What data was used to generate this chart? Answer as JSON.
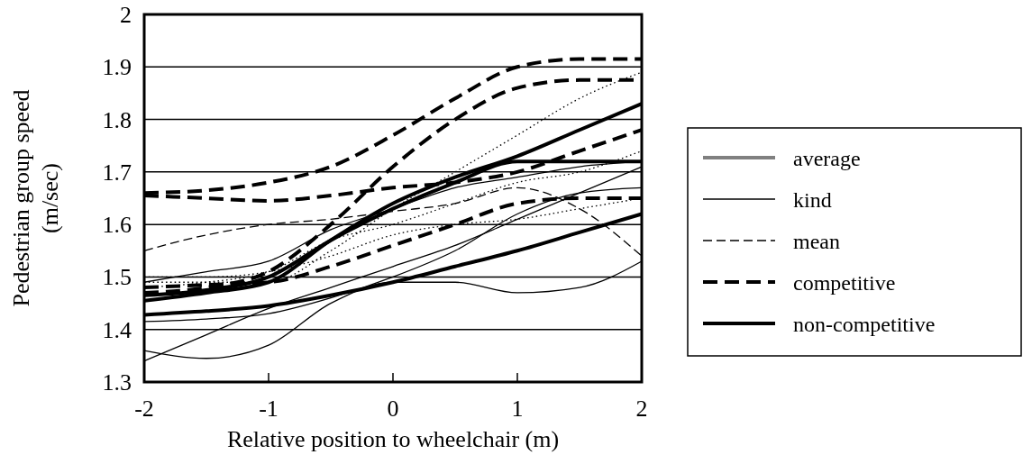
{
  "chart_data": {
    "type": "line",
    "xlabel": "Relative position to wheelchair (m)",
    "ylabel": "Pedestrian group speed (m/sec)",
    "x": [
      -2,
      -1.5,
      -1,
      -0.5,
      0,
      0.5,
      1,
      1.5,
      2
    ],
    "xlim": [
      -2,
      2
    ],
    "xticks": [
      -2,
      -1,
      0,
      1,
      2
    ],
    "ylim": [
      1.3,
      2
    ],
    "yticks": [
      1.3,
      1.4,
      1.5,
      1.6,
      1.7,
      1.8,
      1.9,
      2
    ],
    "grid": "y",
    "legend": "right",
    "marker": "none",
    "series": [
      {
        "name": "average",
        "color": "#808080",
        "line_style": "solid",
        "values": [
          null,
          null,
          null,
          null,
          null,
          null,
          null,
          null,
          null
        ]
      },
      {
        "name": "kind",
        "color": "#000000",
        "line_style": "solid",
        "values": [
          1.49,
          1.51,
          1.53,
          1.59,
          1.63,
          1.67,
          1.69,
          1.71,
          1.72
        ]
      },
      {
        "color": "#000000",
        "line_style": "solid",
        "values": [
          1.36,
          1.345,
          1.37,
          1.45,
          1.49,
          1.49,
          1.47,
          1.48,
          1.53
        ]
      },
      {
        "color": "#000000",
        "line_style": "solid",
        "values": [
          1.34,
          1.39,
          1.44,
          1.48,
          1.52,
          1.56,
          1.61,
          1.66,
          1.71
        ]
      },
      {
        "color": "#000000",
        "line_style": "solid",
        "values": [
          1.415,
          1.42,
          1.43,
          1.46,
          1.5,
          1.55,
          1.62,
          1.66,
          1.67
        ]
      },
      {
        "name": "mean",
        "color": "#000000",
        "line_style": "dashed",
        "values": [
          1.55,
          1.58,
          1.6,
          1.61,
          1.625,
          1.64,
          1.67,
          1.63,
          1.54
        ]
      },
      {
        "color": "#000000",
        "line_style": "dotted",
        "values": [
          1.49,
          1.49,
          1.49,
          1.55,
          1.63,
          1.7,
          1.77,
          1.84,
          1.89
        ]
      },
      {
        "color": "#000000",
        "line_style": "dotted",
        "values": [
          1.48,
          1.49,
          1.51,
          1.57,
          1.6,
          1.64,
          1.68,
          1.7,
          1.74
        ]
      },
      {
        "color": "#000000",
        "line_style": "dotted",
        "values": [
          1.5,
          1.5,
          1.51,
          1.54,
          1.58,
          1.6,
          1.61,
          1.63,
          1.65
        ]
      },
      {
        "name": "competitive",
        "color": "#000000",
        "line_style": "dashed",
        "values": [
          1.66,
          1.665,
          1.68,
          1.71,
          1.77,
          1.84,
          1.9,
          1.915,
          1.915
        ]
      },
      {
        "color": "#000000",
        "line_style": "dashed",
        "values": [
          1.655,
          1.65,
          1.645,
          1.655,
          1.67,
          1.68,
          1.7,
          1.74,
          1.78
        ]
      },
      {
        "color": "#000000",
        "line_style": "dashed",
        "values": [
          1.47,
          1.48,
          1.51,
          1.6,
          1.71,
          1.8,
          1.86,
          1.875,
          1.875
        ]
      },
      {
        "color": "#000000",
        "line_style": "dashed",
        "values": [
          1.48,
          1.485,
          1.49,
          1.52,
          1.56,
          1.6,
          1.64,
          1.65,
          1.65
        ]
      },
      {
        "name": "non-competitive",
        "color": "#000000",
        "line_style": "solid",
        "values": [
          1.455,
          1.47,
          1.49,
          1.57,
          1.64,
          1.69,
          1.73,
          1.78,
          1.83
        ]
      },
      {
        "color": "#000000",
        "line_style": "solid",
        "values": [
          1.465,
          1.475,
          1.5,
          1.57,
          1.63,
          1.68,
          1.72,
          1.72,
          1.72
        ]
      },
      {
        "color": "#000000",
        "line_style": "solid",
        "values": [
          1.428,
          1.435,
          1.445,
          1.465,
          1.49,
          1.52,
          1.55,
          1.585,
          1.62
        ]
      }
    ]
  }
}
